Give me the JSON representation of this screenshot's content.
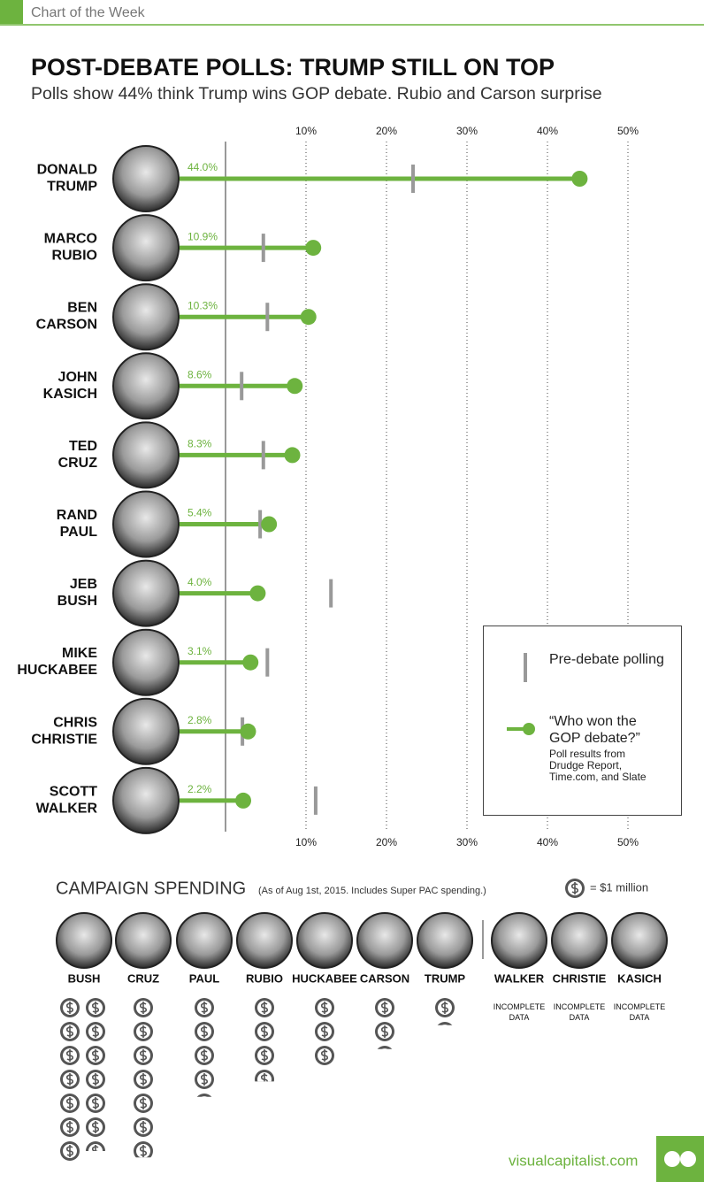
{
  "header": {
    "label": "Chart of the Week"
  },
  "chart_data": [
    {
      "type": "dot",
      "title": "POST-DEBATE POLLS: TRUMP STILL ON TOP",
      "subtitle": "Polls show 44% think Trump wins GOP debate. Rubio and Carson surprise",
      "categories": [
        "DONALD TRUMP",
        "MARCO RUBIO",
        "BEN CARSON",
        "JOHN KASICH",
        "TED CRUZ",
        "RAND PAUL",
        "JEB BUSH",
        "MIKE HUCKABEE",
        "CHRIS CHRISTIE",
        "SCOTT WALKER"
      ],
      "series": [
        {
          "name": "Pre-debate polling",
          "color": "#999999",
          "values": [
            23.3,
            4.7,
            5.2,
            2.0,
            4.7,
            4.3,
            13.1,
            5.2,
            2.1,
            11.2
          ]
        },
        {
          "name": "“Who won the GOP debate?”",
          "color": "#6db33f",
          "values": [
            44.0,
            10.9,
            10.3,
            8.6,
            8.3,
            5.4,
            4.0,
            3.1,
            2.8,
            2.2
          ],
          "value_labels": [
            "44.0%",
            "10.9%",
            "10.3%",
            "8.6%",
            "8.3%",
            "5.4%",
            "4.0%",
            "3.1%",
            "2.8%",
            "2.2%"
          ]
        }
      ],
      "legend_note": "Poll results from Drudge Report, Time.com, and Slate",
      "xlim": [
        0,
        50
      ],
      "xticks": [
        {
          "value": 10,
          "label": "10%"
        },
        {
          "value": 20,
          "label": "20%"
        },
        {
          "value": 30,
          "label": "30%"
        },
        {
          "value": 40,
          "label": "40%"
        },
        {
          "value": 50,
          "label": "50%"
        }
      ],
      "grid": true
    },
    {
      "type": "pictogram",
      "title": "CAMPAIGN SPENDING",
      "subtitle": "(As of Aug 1st, 2015. Includes Super PAC spending.)",
      "unit_label": "= $1 million",
      "categories": [
        "BUSH",
        "CRUZ",
        "PAUL",
        "RUBIO",
        "HUCKABEE",
        "CARSON",
        "TRUMP",
        "WALKER",
        "CHRISTIE",
        "KASICH"
      ],
      "values": [
        13.5,
        6.8,
        4.2,
        3.6,
        3,
        2.2,
        1.2,
        null,
        null,
        null
      ],
      "missing_label": "INCOMPLETE DATA",
      "color": "#555555"
    }
  ],
  "footer": {
    "site": "visualcapitalist.com"
  }
}
